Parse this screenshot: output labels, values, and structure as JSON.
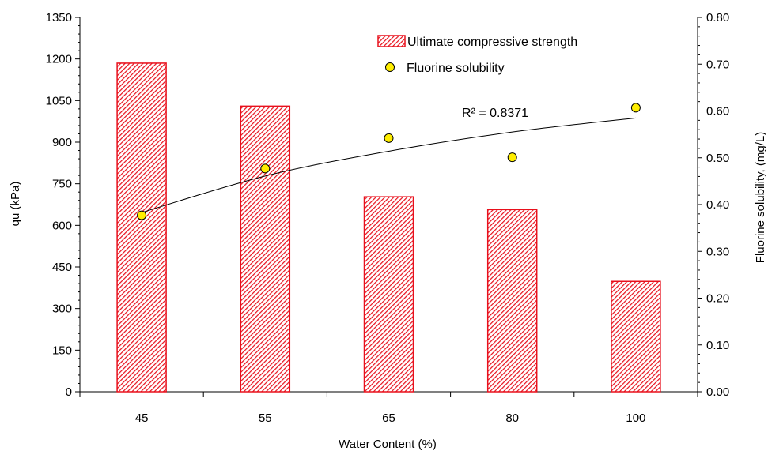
{
  "chart_data": {
    "type": "bar",
    "xlabel": "Water Content (%)",
    "ylabel": "qu (kPa)",
    "y2label": "Fluorine solubility, (mg/L)",
    "ylim": [
      0,
      1350
    ],
    "y2lim": [
      0,
      0.8
    ],
    "y_ticks": [
      "0",
      "150",
      "300",
      "450",
      "600",
      "750",
      "900",
      "1050",
      "1200",
      "1350"
    ],
    "y2_ticks": [
      "0.00",
      "0.10",
      "0.20",
      "0.30",
      "0.40",
      "0.50",
      "0.60",
      "0.70",
      "0.80"
    ],
    "categories": [
      "45",
      "55",
      "65",
      "80",
      "100"
    ],
    "series": [
      {
        "name": "Ultimate compressive strength",
        "type": "bar",
        "axis": "left",
        "values": [
          1185,
          1030,
          703,
          657,
          398
        ],
        "color": "#e8101c"
      },
      {
        "name": "Fluorine solubility",
        "type": "scatter",
        "axis": "right",
        "values": [
          0.377,
          0.477,
          0.542,
          0.501,
          0.607
        ],
        "color": "#ffee00"
      }
    ],
    "trendline": {
      "series": "Fluorine solubility",
      "axis": "right",
      "points": [
        {
          "x": "45",
          "y": 0.383
        },
        {
          "x": "55",
          "y": 0.461
        },
        {
          "x": "65",
          "y": 0.514
        },
        {
          "x": "80",
          "y": 0.555
        },
        {
          "x": "100",
          "y": 0.585
        }
      ],
      "label": "R² = 0.8371",
      "color": "#000000"
    },
    "legend_position": "top-right",
    "grid": false
  }
}
